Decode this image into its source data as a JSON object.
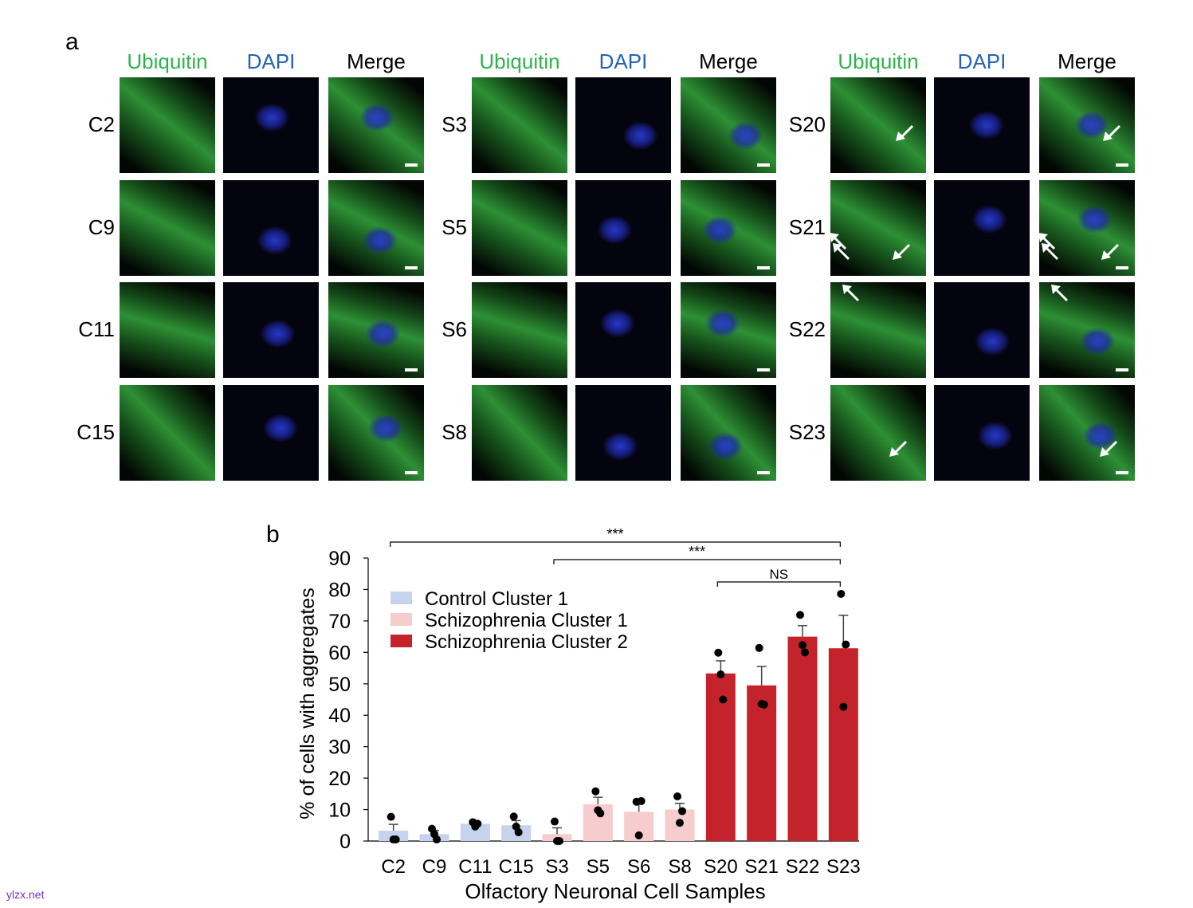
{
  "panel_a": {
    "label": "a",
    "groups": [
      {
        "headers": [
          "Ubiquitin",
          "DAPI",
          "Merge"
        ],
        "rows": [
          "C2",
          "C9",
          "C11",
          "C15"
        ]
      },
      {
        "headers": [
          "Ubiquitin",
          "DAPI",
          "Merge"
        ],
        "rows": [
          "S3",
          "S5",
          "S6",
          "S8"
        ]
      },
      {
        "headers": [
          "Ubiquitin",
          "DAPI",
          "Merge"
        ],
        "rows": [
          "S20",
          "S21",
          "S22",
          "S23"
        ]
      }
    ],
    "colors": {
      "ubiquitin": "#2eb34a",
      "dapi": "#2463b8",
      "merge": "#000000"
    }
  },
  "panel_b": {
    "label": "b",
    "chart_data": {
      "type": "bar",
      "categories": [
        "C2",
        "C9",
        "C11",
        "C15",
        "S3",
        "S5",
        "S6",
        "S8",
        "S20",
        "S21",
        "S22",
        "S23"
      ],
      "values": [
        3.3,
        2.2,
        5.5,
        5.0,
        2.2,
        11.7,
        9.3,
        10.0,
        53.3,
        49.5,
        65.0,
        61.3
      ],
      "errors": [
        2.0,
        1.2,
        0.4,
        1.5,
        2.0,
        2.2,
        3.3,
        2.0,
        4.0,
        6.0,
        3.5,
        10.5
      ],
      "points": [
        [
          7.7,
          0.5,
          0.5
        ],
        [
          3.9,
          0.5,
          2.2
        ],
        [
          6.0,
          5.5,
          4.6
        ],
        [
          7.8,
          2.8,
          4.6
        ],
        [
          6.2,
          0.0,
          0.0
        ],
        [
          15.8,
          8.8,
          9.8
        ],
        [
          12.5,
          12.7,
          1.8
        ],
        [
          14.2,
          9.5,
          5.8
        ],
        [
          59.9,
          45.0,
          53.0
        ],
        [
          61.4,
          43.4,
          43.6
        ],
        [
          71.9,
          60.0,
          62.3
        ],
        [
          78.6,
          62.5,
          42.7
        ]
      ],
      "groups": [
        "Control Cluster 1",
        "Control Cluster 1",
        "Control Cluster 1",
        "Control Cluster 1",
        "Schizophrenia Cluster 1",
        "Schizophrenia Cluster 1",
        "Schizophrenia Cluster 1",
        "Schizophrenia Cluster 1",
        "Schizophrenia Cluster 2",
        "Schizophrenia Cluster 2",
        "Schizophrenia Cluster 2",
        "Schizophrenia Cluster 2"
      ],
      "legend": [
        {
          "name": "Control Cluster 1",
          "color": "#c5d3ec"
        },
        {
          "name": "Schizophrenia Cluster 1",
          "color": "#f6cccc"
        },
        {
          "name": "Schizophrenia Cluster 2",
          "color": "#c4232b"
        }
      ],
      "legend_position": "top-left",
      "ylabel": "% of cells with aggregates",
      "xlabel": "Olfactory Neuronal Cell Samples",
      "ylim": [
        0,
        90
      ],
      "yticks": [
        0,
        10,
        20,
        30,
        40,
        50,
        60,
        70,
        80,
        90
      ],
      "significance": [
        {
          "from": "C2",
          "to": "S23",
          "label": "***"
        },
        {
          "from": "S3",
          "to": "S23",
          "label": "***"
        },
        {
          "from": "S20",
          "to": "S23",
          "label": "NS"
        }
      ]
    }
  },
  "watermark": "ylzx.net"
}
